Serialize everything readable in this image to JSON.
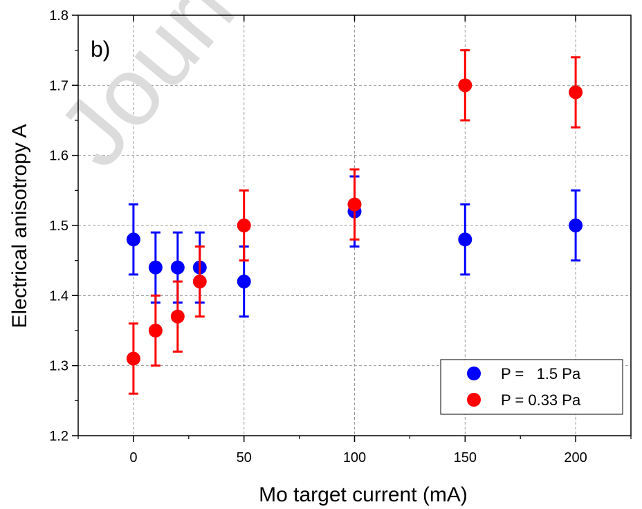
{
  "chart_data": {
    "type": "scatter",
    "title": "",
    "panel_label": "b)",
    "watermark": "Journal",
    "xlabel": "Mo target current (mA)",
    "ylabel": "Electrical anisotropy A",
    "xlim": [
      -25,
      225
    ],
    "ylim": [
      1.2,
      1.8
    ],
    "xticks": [
      0,
      50,
      100,
      150,
      200
    ],
    "yticks": [
      1.2,
      1.3,
      1.4,
      1.5,
      1.6,
      1.7,
      1.8
    ],
    "grid": true,
    "legend_position": "bottom-right",
    "series": [
      {
        "name": "P =   1.5 Pa",
        "color": "#0000ff",
        "points": [
          {
            "x": 0,
            "y": 1.48,
            "err": 0.05
          },
          {
            "x": 10,
            "y": 1.44,
            "err": 0.05
          },
          {
            "x": 20,
            "y": 1.44,
            "err": 0.05
          },
          {
            "x": 30,
            "y": 1.44,
            "err": 0.05
          },
          {
            "x": 50,
            "y": 1.42,
            "err": 0.05
          },
          {
            "x": 100,
            "y": 1.52,
            "err": 0.05
          },
          {
            "x": 150,
            "y": 1.48,
            "err": 0.05
          },
          {
            "x": 200,
            "y": 1.5,
            "err": 0.05
          }
        ]
      },
      {
        "name": "P = 0.33 Pa",
        "color": "#ff0000",
        "points": [
          {
            "x": 0,
            "y": 1.31,
            "err": 0.05
          },
          {
            "x": 10,
            "y": 1.35,
            "err": 0.05
          },
          {
            "x": 20,
            "y": 1.37,
            "err": 0.05
          },
          {
            "x": 30,
            "y": 1.42,
            "err": 0.05
          },
          {
            "x": 50,
            "y": 1.5,
            "err": 0.05
          },
          {
            "x": 100,
            "y": 1.53,
            "err": 0.05
          },
          {
            "x": 150,
            "y": 1.7,
            "err": 0.05
          },
          {
            "x": 200,
            "y": 1.69,
            "err": 0.05
          }
        ]
      }
    ]
  }
}
